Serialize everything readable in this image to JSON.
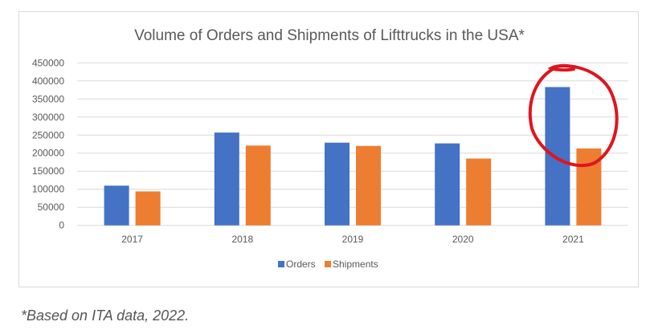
{
  "chart_data": {
    "type": "bar",
    "title": "Volume of Orders and Shipments of Lifttrucks in the USA*",
    "categories": [
      "2017",
      "2018",
      "2019",
      "2020",
      "2021"
    ],
    "series": [
      {
        "name": "Orders",
        "color": "#4472c4",
        "values": [
          110000,
          257000,
          229000,
          227000,
          383000
        ]
      },
      {
        "name": "Shipments",
        "color": "#ed7d31",
        "values": [
          94000,
          221000,
          220000,
          185000,
          213000
        ]
      }
    ],
    "y_ticks": [
      "0",
      "50000",
      "100000",
      "150000",
      "200000",
      "250000",
      "300000",
      "350000",
      "400000",
      "450000"
    ],
    "ylim": [
      0,
      450000
    ],
    "xlabel": "",
    "ylabel": "",
    "grid": true,
    "legend_position": "bottom",
    "annotation": {
      "type": "hand-drawn circle",
      "target": "2021",
      "color": "#e0141e"
    }
  },
  "footnote": "*Based on ITA data, 2022."
}
